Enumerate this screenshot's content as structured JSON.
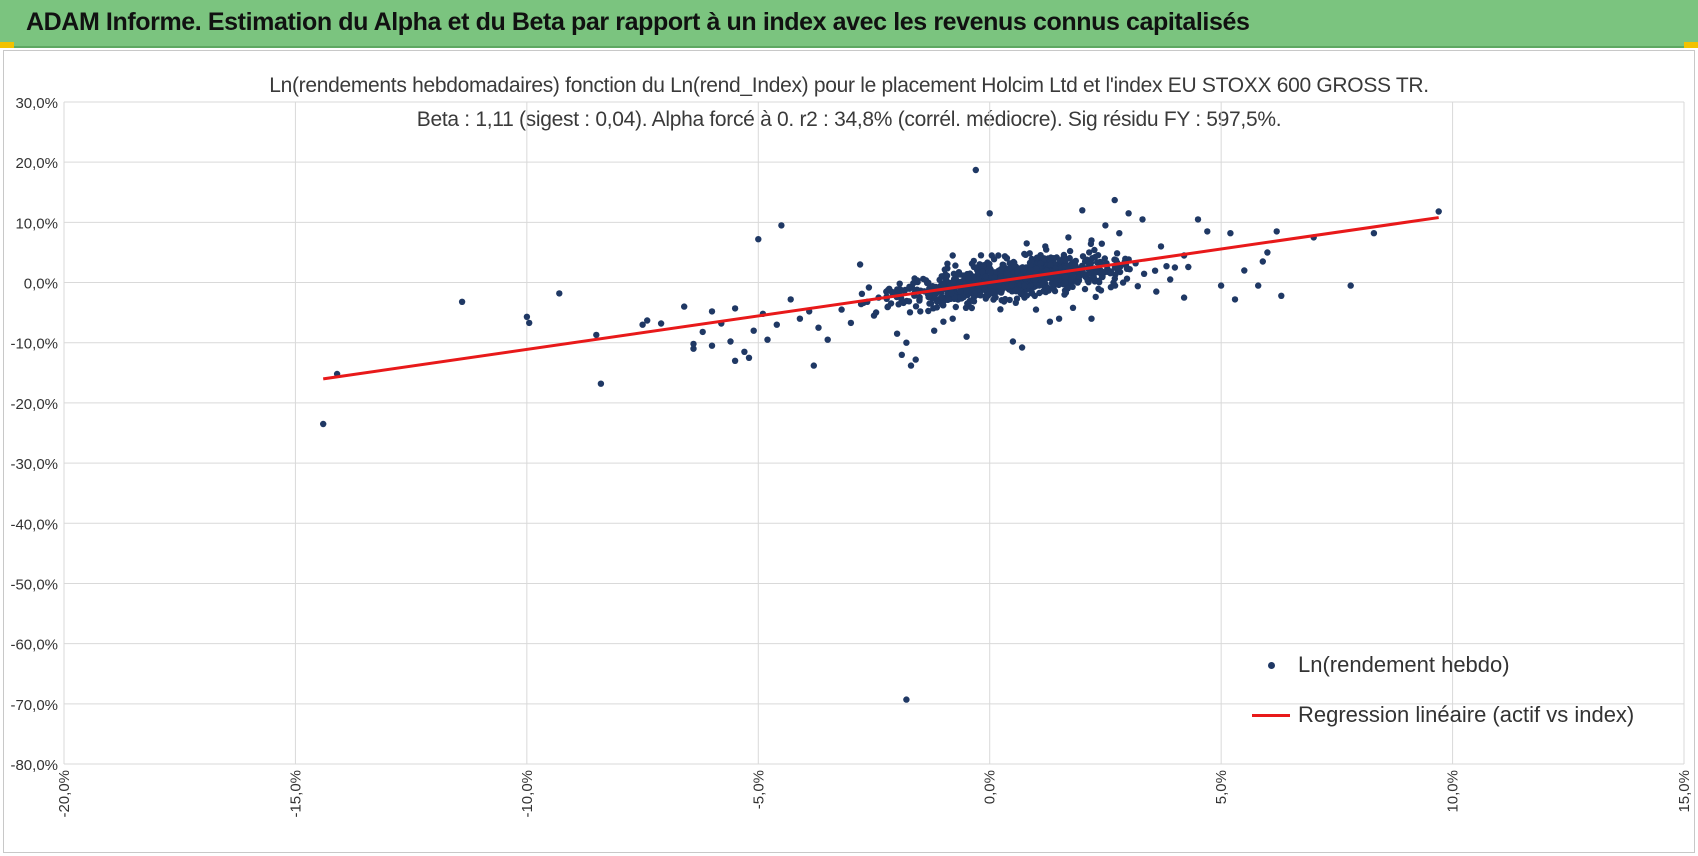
{
  "header": {
    "title": "ADAM Informe. Estimation du Alpha et du Beta par rapport à un index avec les revenus connus capitalisés"
  },
  "colors": {
    "header_bg": "#7bc47f",
    "accent": "#f2c200",
    "points": "#1f3864",
    "regression": "#e8191a",
    "grid": "#d9d9d9"
  },
  "chart_data": {
    "type": "scatter",
    "title": "Ln(rendements hebdomadaires) fonction du Ln(rend_Index) pour le placement Holcim Ltd et l'index EU STOXX 600 GROSS TR.",
    "subtitle": "Beta : 1,11 (sigest : 0,04). Alpha forcé à 0. r2 : 34,8% (corrél. médiocre). Sig résidu FY : 597,5%.",
    "xlim": [
      -20,
      15
    ],
    "ylim": [
      -80,
      30
    ],
    "x_ticks": [
      "-20,0%",
      "-15,0%",
      "-10,0%",
      "-5,0%",
      "0,0%",
      "5,0%",
      "10,0%",
      "15,0%"
    ],
    "y_ticks": [
      "30,0%",
      "20,0%",
      "10,0%",
      "0,0%",
      "-10,0%",
      "-20,0%",
      "-30,0%",
      "-40,0%",
      "-50,0%",
      "-60,0%",
      "-70,0%",
      "-80,0%"
    ],
    "grid": true,
    "legend_position": "bottom-right",
    "series": [
      {
        "name": "Ln(rendement hebdo)",
        "kind": "scatter",
        "points": [
          [
            -14.4,
            -23.5
          ],
          [
            -14.1,
            -15.2
          ],
          [
            -11.4,
            -3.2
          ],
          [
            -10.0,
            -5.7
          ],
          [
            -9.95,
            -6.7
          ],
          [
            -9.3,
            -1.8
          ],
          [
            -8.5,
            -8.7
          ],
          [
            -8.4,
            -16.8
          ],
          [
            -7.5,
            -7.0
          ],
          [
            -7.4,
            -6.3
          ],
          [
            -7.1,
            -6.8
          ],
          [
            -6.6,
            -4.0
          ],
          [
            -6.4,
            -11.0
          ],
          [
            -6.4,
            -10.2
          ],
          [
            -6.2,
            -8.2
          ],
          [
            -6.0,
            -10.5
          ],
          [
            -6.0,
            -4.8
          ],
          [
            -5.8,
            -6.8
          ],
          [
            -5.6,
            -9.8
          ],
          [
            -5.5,
            -13.0
          ],
          [
            -5.5,
            -4.3
          ],
          [
            -5.3,
            -11.5
          ],
          [
            -5.2,
            -12.5
          ],
          [
            -5.1,
            -8.0
          ],
          [
            -5.0,
            7.2
          ],
          [
            -4.9,
            -5.2
          ],
          [
            -4.8,
            -9.5
          ],
          [
            -4.6,
            -7.0
          ],
          [
            -4.5,
            9.5
          ],
          [
            -4.3,
            -2.8
          ],
          [
            -4.1,
            -6.0
          ],
          [
            -3.9,
            -4.8
          ],
          [
            -3.8,
            -13.8
          ],
          [
            -3.7,
            -7.5
          ],
          [
            -3.5,
            -9.5
          ],
          [
            -3.2,
            -4.5
          ],
          [
            -3.0,
            -6.7
          ],
          [
            -2.8,
            3.0
          ],
          [
            -2.5,
            -5.5
          ],
          [
            -2.4,
            -2.5
          ],
          [
            -2.2,
            -4.0
          ],
          [
            -2.0,
            -8.5
          ],
          [
            -1.9,
            -12.0
          ],
          [
            -1.8,
            -10.0
          ],
          [
            -1.7,
            -13.8
          ],
          [
            -1.6,
            -12.8
          ],
          [
            -1.8,
            -69.3
          ],
          [
            -1.5,
            -4.8
          ],
          [
            -1.3,
            -3.5
          ],
          [
            -1.2,
            -8.0
          ],
          [
            -1.0,
            -6.5
          ],
          [
            -0.8,
            -6.0
          ],
          [
            -0.8,
            4.5
          ],
          [
            -0.5,
            -9.0
          ],
          [
            -0.3,
            18.7
          ],
          [
            0.0,
            11.5
          ],
          [
            0.5,
            -9.8
          ],
          [
            0.7,
            -10.8
          ],
          [
            1.0,
            -4.5
          ],
          [
            1.3,
            -6.5
          ],
          [
            1.5,
            -6.0
          ],
          [
            1.8,
            -4.2
          ],
          [
            2.2,
            -6.0
          ],
          [
            2.5,
            9.5
          ],
          [
            2.7,
            13.7
          ],
          [
            3.0,
            11.5
          ],
          [
            3.3,
            10.5
          ],
          [
            3.6,
            -1.5
          ],
          [
            4.2,
            -2.5
          ],
          [
            4.5,
            10.5
          ],
          [
            4.7,
            8.5
          ],
          [
            5.0,
            -0.5
          ],
          [
            5.2,
            8.2
          ],
          [
            5.3,
            -2.8
          ],
          [
            5.5,
            2.0
          ],
          [
            5.8,
            -0.5
          ],
          [
            5.9,
            3.5
          ],
          [
            6.0,
            5.0
          ],
          [
            6.2,
            8.5
          ],
          [
            6.3,
            -2.2
          ],
          [
            7.0,
            7.5
          ],
          [
            7.8,
            -0.5
          ],
          [
            8.3,
            8.2
          ],
          [
            9.7,
            11.8
          ],
          [
            2.0,
            12.0
          ],
          [
            1.7,
            7.5
          ],
          [
            2.2,
            7.0
          ],
          [
            3.7,
            6.0
          ],
          [
            4.0,
            2.5
          ],
          [
            4.2,
            4.5
          ],
          [
            3.9,
            0.5
          ],
          [
            3.2,
            -0.6
          ],
          [
            2.8,
            8.2
          ],
          [
            1.2,
            6.0
          ],
          [
            0.8,
            6.5
          ]
        ]
      },
      {
        "name": "Regression linéaire (actif vs index)",
        "kind": "line",
        "x": [
          -14.4,
          9.7
        ],
        "y": [
          -16.0,
          10.8
        ]
      }
    ]
  }
}
